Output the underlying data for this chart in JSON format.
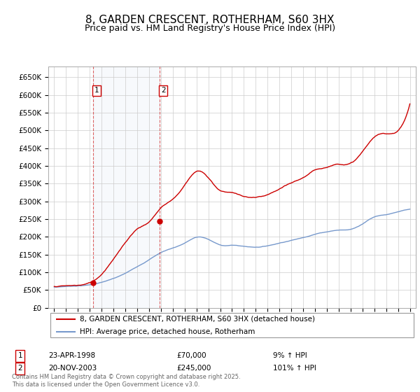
{
  "title": "8, GARDEN CRESCENT, ROTHERHAM, S60 3HX",
  "subtitle": "Price paid vs. HM Land Registry's House Price Index (HPI)",
  "title_fontsize": 11,
  "subtitle_fontsize": 9,
  "background_color": "#ffffff",
  "plot_bg_color": "#ffffff",
  "grid_color": "#cccccc",
  "hpi_line_color": "#7799cc",
  "property_line_color": "#cc0000",
  "sale1_year": 1998.3,
  "sale1_price": 70000,
  "sale1_date": "23-APR-1998",
  "sale1_hpi_pct": "9%",
  "sale2_year": 2003.9,
  "sale2_price": 245000,
  "sale2_date": "20-NOV-2003",
  "sale2_hpi_pct": "101%",
  "legend_line1": "8, GARDEN CRESCENT, ROTHERHAM, S60 3HX (detached house)",
  "legend_line2": "HPI: Average price, detached house, Rotherham",
  "footer": "Contains HM Land Registry data © Crown copyright and database right 2025.\nThis data is licensed under the Open Government Licence v3.0.",
  "ylim_max": 680000,
  "xlim_min": 1994.5,
  "xlim_max": 2025.5,
  "hpi_years": [
    1995,
    1996,
    1997,
    1998,
    1999,
    2000,
    2001,
    2002,
    2003,
    2004,
    2005,
    2006,
    2007,
    2008,
    2009,
    2010,
    2011,
    2012,
    2013,
    2014,
    2015,
    2016,
    2017,
    2018,
    2019,
    2020,
    2021,
    2022,
    2023,
    2024,
    2025
  ],
  "hpi_values": [
    58000,
    60000,
    62000,
    65000,
    72000,
    82000,
    96000,
    115000,
    135000,
    155000,
    168000,
    182000,
    198000,
    192000,
    176000,
    175000,
    172000,
    170000,
    174000,
    182000,
    190000,
    198000,
    208000,
    215000,
    220000,
    222000,
    238000,
    258000,
    265000,
    272000,
    278000
  ],
  "prop_years": [
    1995,
    1996,
    1997,
    1998,
    1999,
    2000,
    2001,
    2002,
    2003,
    2004,
    2005,
    2006,
    2007,
    2008,
    2009,
    2010,
    2011,
    2012,
    2013,
    2014,
    2015,
    2016,
    2017,
    2018,
    2019,
    2020,
    2021,
    2022,
    2023,
    2024,
    2025
  ],
  "prop_values": [
    60000,
    62000,
    63000,
    70000,
    95000,
    140000,
    185000,
    225000,
    245000,
    285000,
    310000,
    350000,
    390000,
    370000,
    335000,
    330000,
    318000,
    315000,
    320000,
    335000,
    350000,
    365000,
    385000,
    395000,
    405000,
    408000,
    440000,
    480000,
    490000,
    500000,
    575000
  ]
}
